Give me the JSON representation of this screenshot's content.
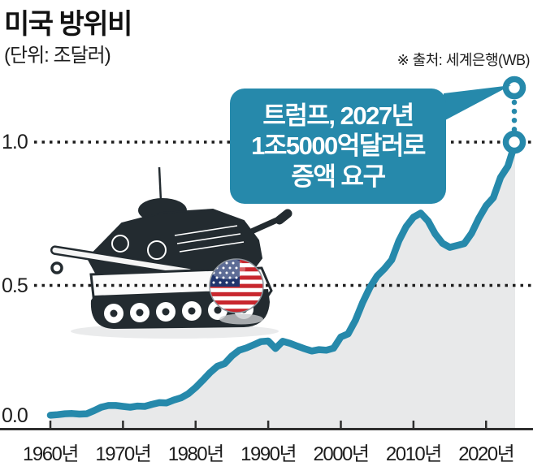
{
  "title": "미국 방위비",
  "unit_label": "(단위: 조달러)",
  "source": "※ 출처: 세계은행(WB)",
  "colors": {
    "accent": "#2689ab",
    "area_fill": "#e8e9ea",
    "grid": "#1c1c1c",
    "axis": "#2e2e2e",
    "tank": "#232b30",
    "flag_red": "#c8272e",
    "flag_blue": "#20356e"
  },
  "callout": {
    "line1": "트럼프, 2027년",
    "line2_strong": "1조5000",
    "line2_rest": "억달러로",
    "line3": "증액 요구"
  },
  "y_axis": {
    "labels": [
      "1.0",
      "0.5",
      "0.0"
    ],
    "values": [
      1.0,
      0.5,
      0.0
    ]
  },
  "x_axis": {
    "labels": [
      "1960년",
      "1970년",
      "1980년",
      "1990년",
      "2000년",
      "2010년",
      "2020년"
    ],
    "years": [
      1960,
      1970,
      1980,
      1990,
      2000,
      2010,
      2020
    ]
  },
  "chart_data": {
    "type": "area",
    "title": "미국 방위비",
    "ylabel": "조달러 (trillion USD)",
    "source": "세계은행(WB)",
    "xlim": [
      1960,
      2024
    ],
    "ylim": [
      0,
      1.2
    ],
    "x_ticks": [
      1960,
      1970,
      1980,
      1990,
      2000,
      2010,
      2020
    ],
    "y_ticks": [
      0.0,
      0.5,
      1.0
    ],
    "grid": "dotted horizontal",
    "legend": "none",
    "x": [
      1960,
      1961,
      1962,
      1963,
      1964,
      1965,
      1966,
      1967,
      1968,
      1969,
      1970,
      1971,
      1972,
      1973,
      1974,
      1975,
      1976,
      1977,
      1978,
      1979,
      1980,
      1981,
      1982,
      1983,
      1984,
      1985,
      1986,
      1987,
      1988,
      1989,
      1990,
      1991,
      1992,
      1993,
      1994,
      1995,
      1996,
      1997,
      1998,
      1999,
      2000,
      2001,
      2002,
      2003,
      2004,
      2005,
      2006,
      2007,
      2008,
      2009,
      2010,
      2011,
      2012,
      2013,
      2014,
      2015,
      2016,
      2017,
      2018,
      2019,
      2020,
      2021,
      2022,
      2023,
      2024
    ],
    "series": [
      {
        "name": "미국 방위비",
        "values": [
          0.047,
          0.049,
          0.052,
          0.053,
          0.051,
          0.052,
          0.063,
          0.075,
          0.081,
          0.081,
          0.078,
          0.075,
          0.079,
          0.078,
          0.085,
          0.091,
          0.09,
          0.1,
          0.108,
          0.122,
          0.144,
          0.169,
          0.196,
          0.218,
          0.227,
          0.254,
          0.274,
          0.282,
          0.293,
          0.304,
          0.306,
          0.28,
          0.305,
          0.298,
          0.288,
          0.279,
          0.271,
          0.276,
          0.274,
          0.281,
          0.32,
          0.331,
          0.378,
          0.44,
          0.493,
          0.533,
          0.558,
          0.589,
          0.656,
          0.705,
          0.738,
          0.752,
          0.725,
          0.679,
          0.647,
          0.633,
          0.639,
          0.646,
          0.682,
          0.734,
          0.778,
          0.806,
          0.877,
          0.916,
          0.997
        ]
      }
    ],
    "annotation": {
      "text": "트럼프, 2027년 1조5000억달러로 증액 요구",
      "target_year": 2027,
      "target_value": 1.5,
      "marker_years": [
        "2024 (값 약 1.0조달러)",
        "2027 목표 (축 범위 밖 표시)"
      ]
    }
  }
}
